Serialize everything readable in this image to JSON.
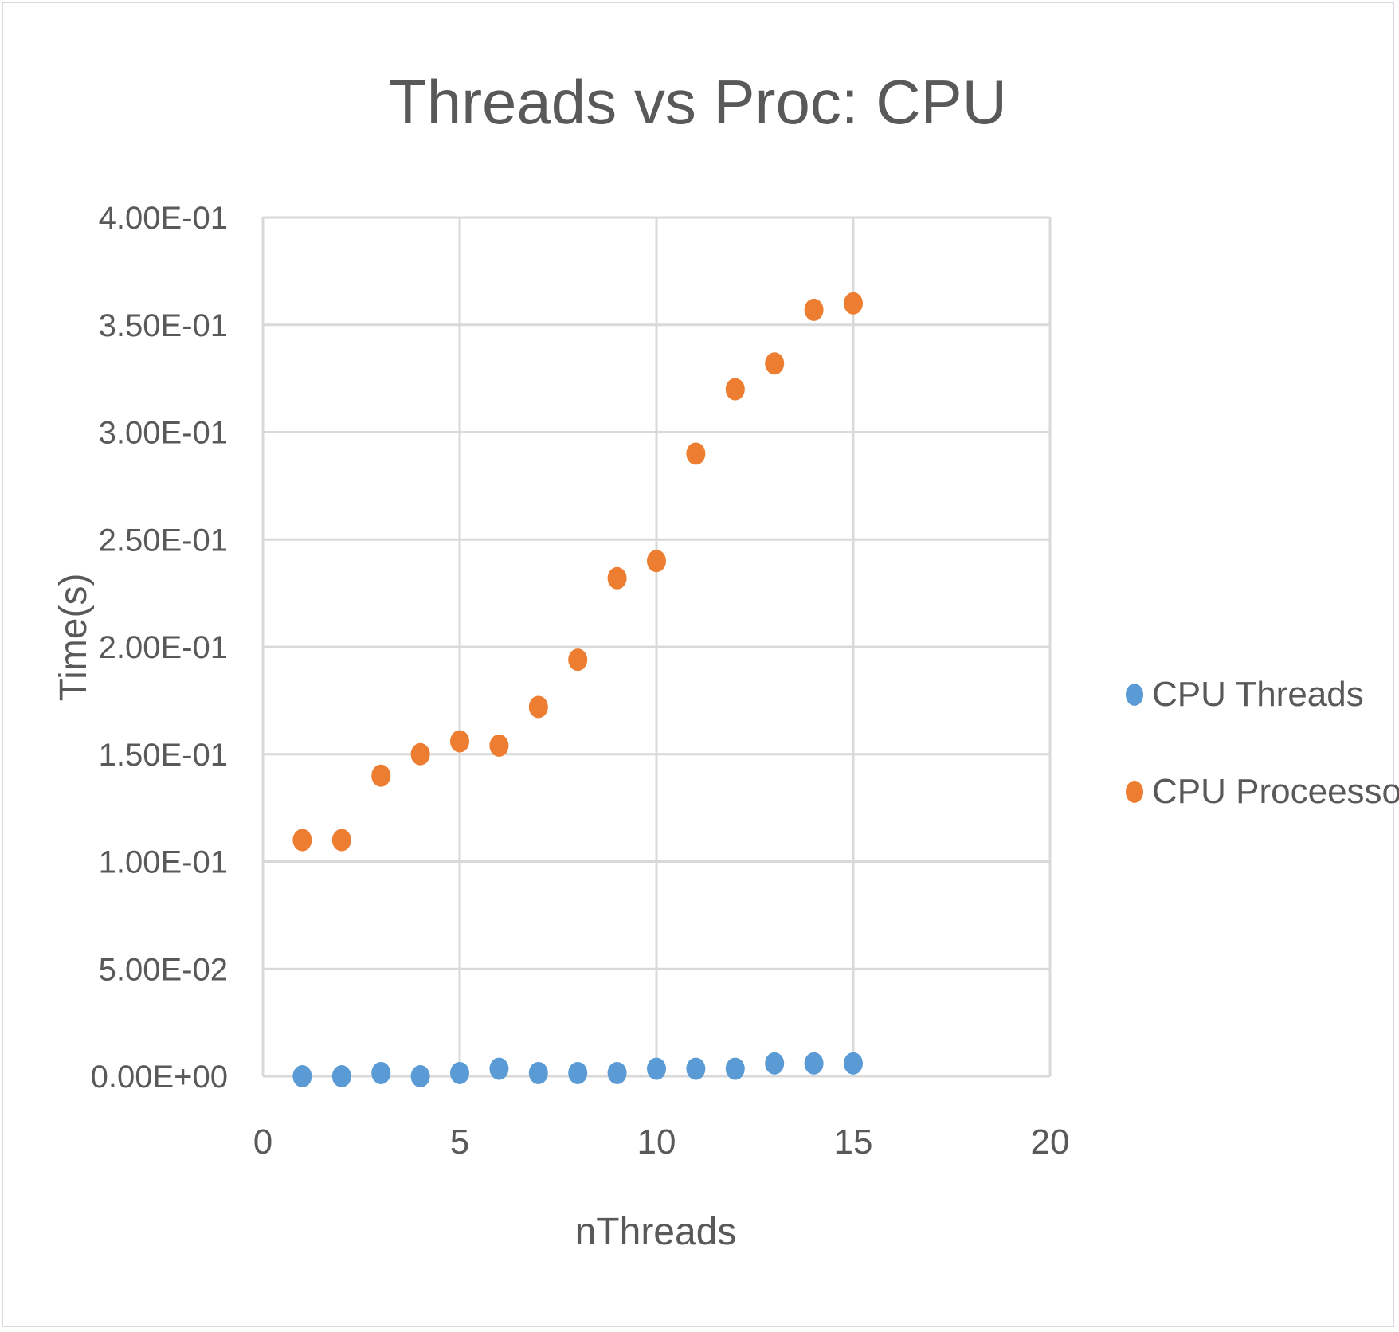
{
  "chart_data": {
    "type": "scatter",
    "title": "Threads vs Proc: CPU",
    "xlabel": "nThreads",
    "ylabel": "Time(s)",
    "xlim": [
      0,
      20
    ],
    "ylim": [
      0,
      0.4
    ],
    "x_ticks": [
      0,
      5,
      10,
      15,
      20
    ],
    "x_tick_labels": [
      "0",
      "5",
      "10",
      "15",
      "20"
    ],
    "y_ticks": [
      0,
      0.05,
      0.1,
      0.15,
      0.2,
      0.25,
      0.3,
      0.35,
      0.4
    ],
    "y_tick_labels": [
      "0.00E+00",
      "5.00E-02",
      "1.00E-01",
      "1.50E-01",
      "2.00E-01",
      "2.50E-01",
      "3.00E-01",
      "3.50E-01",
      "4.00E-01"
    ],
    "grid": true,
    "legend_position": "right",
    "series": [
      {
        "name": "CPU Threads",
        "color": "#5b9bd5",
        "x": [
          1,
          2,
          3,
          4,
          5,
          6,
          7,
          8,
          9,
          10,
          11,
          12,
          13,
          14,
          15
        ],
        "y": [
          0.0,
          0.0,
          0.0015,
          0.0,
          0.0015,
          0.0035,
          0.0015,
          0.0015,
          0.0015,
          0.0035,
          0.0035,
          0.0035,
          0.006,
          0.006,
          0.006
        ]
      },
      {
        "name": "CPU Proceessor",
        "color": "#ed7d31",
        "x": [
          1,
          2,
          3,
          4,
          5,
          6,
          7,
          8,
          9,
          10,
          11,
          12,
          13,
          14,
          15
        ],
        "y": [
          0.11,
          0.11,
          0.14,
          0.15,
          0.156,
          0.154,
          0.172,
          0.194,
          0.232,
          0.24,
          0.29,
          0.32,
          0.332,
          0.357,
          0.36
        ]
      }
    ]
  }
}
